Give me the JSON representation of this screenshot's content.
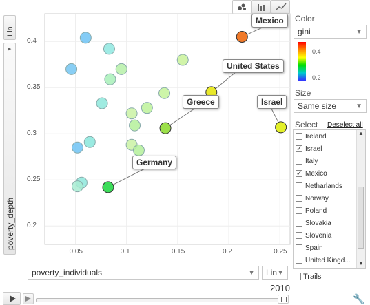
{
  "tabs": {
    "bubble_icon": "bubble-chart-icon",
    "bar_icon": "bar-chart-icon",
    "line_icon": "line-chart-icon"
  },
  "y_axis": {
    "scale_label": "Lin",
    "label": "poverty_depth"
  },
  "x_axis": {
    "selector_value": "poverty_individuals",
    "scale_label": "Lin"
  },
  "color": {
    "heading": "Color",
    "selector_value": "gini",
    "scale_max": "0.4",
    "scale_min": "0.2"
  },
  "size": {
    "heading": "Size",
    "selector_value": "Same size"
  },
  "select": {
    "heading": "Select",
    "deselect_label": "Deselect all",
    "items": [
      {
        "label": "Ireland",
        "checked": false
      },
      {
        "label": "Israel",
        "checked": true
      },
      {
        "label": "Italy",
        "checked": false
      },
      {
        "label": "Mexico",
        "checked": true
      },
      {
        "label": "Netharlands",
        "checked": false
      },
      {
        "label": "Norway",
        "checked": false
      },
      {
        "label": "Poland",
        "checked": false
      },
      {
        "label": "Slovakia",
        "checked": false
      },
      {
        "label": "Slovenia",
        "checked": false
      },
      {
        "label": "Spain",
        "checked": false
      },
      {
        "label": "United Kingd...",
        "checked": false
      }
    ]
  },
  "trails_label": "Trails",
  "year": "2010",
  "chart_data": {
    "type": "scatter",
    "xlabel": "poverty_individuals",
    "ylabel": "poverty_depth",
    "xlim": [
      0.02,
      0.26
    ],
    "ylim": [
      0.18,
      0.43
    ],
    "xticks": [
      "0.05",
      "0.1",
      "0.15",
      "0.2",
      "0.25"
    ],
    "yticks": [
      "0.2",
      "0.25",
      "0.3",
      "0.35",
      "0.4"
    ],
    "color_by": "gini",
    "points": [
      {
        "x": 0.213,
        "y": 0.405,
        "label": "Mexico",
        "color": "#f07a2a"
      },
      {
        "x": 0.183,
        "y": 0.345,
        "label": "United States",
        "color": "#e8e82a"
      },
      {
        "x": 0.251,
        "y": 0.307,
        "label": "Israel",
        "color": "#e3f02a"
      },
      {
        "x": 0.138,
        "y": 0.306,
        "label": "Greece",
        "color": "#9ce04a"
      },
      {
        "x": 0.082,
        "y": 0.242,
        "label": "Germany",
        "color": "#3ddc5a"
      },
      {
        "x": 0.06,
        "y": 0.404,
        "color": "#6ec3f5"
      },
      {
        "x": 0.083,
        "y": 0.392,
        "color": "#8fe8e0"
      },
      {
        "x": 0.155,
        "y": 0.38,
        "color": "#c9f29a"
      },
      {
        "x": 0.046,
        "y": 0.37,
        "color": "#74c6f2"
      },
      {
        "x": 0.095,
        "y": 0.37,
        "color": "#b6f0a8"
      },
      {
        "x": 0.084,
        "y": 0.359,
        "color": "#a8f0b8"
      },
      {
        "x": 0.137,
        "y": 0.344,
        "color": "#c4f39a"
      },
      {
        "x": 0.076,
        "y": 0.333,
        "color": "#8ee8dc"
      },
      {
        "x": 0.12,
        "y": 0.328,
        "color": "#bdf29a"
      },
      {
        "x": 0.105,
        "y": 0.322,
        "color": "#caf2a4"
      },
      {
        "x": 0.108,
        "y": 0.309,
        "color": "#b4f09a"
      },
      {
        "x": 0.064,
        "y": 0.291,
        "color": "#88e6dc"
      },
      {
        "x": 0.052,
        "y": 0.285,
        "color": "#6ec3f5"
      },
      {
        "x": 0.105,
        "y": 0.288,
        "color": "#caf2a4"
      },
      {
        "x": 0.112,
        "y": 0.282,
        "color": "#b4f09a"
      },
      {
        "x": 0.056,
        "y": 0.247,
        "color": "#8ee8dc"
      },
      {
        "x": 0.052,
        "y": 0.243,
        "color": "#a8ecd2"
      }
    ]
  }
}
